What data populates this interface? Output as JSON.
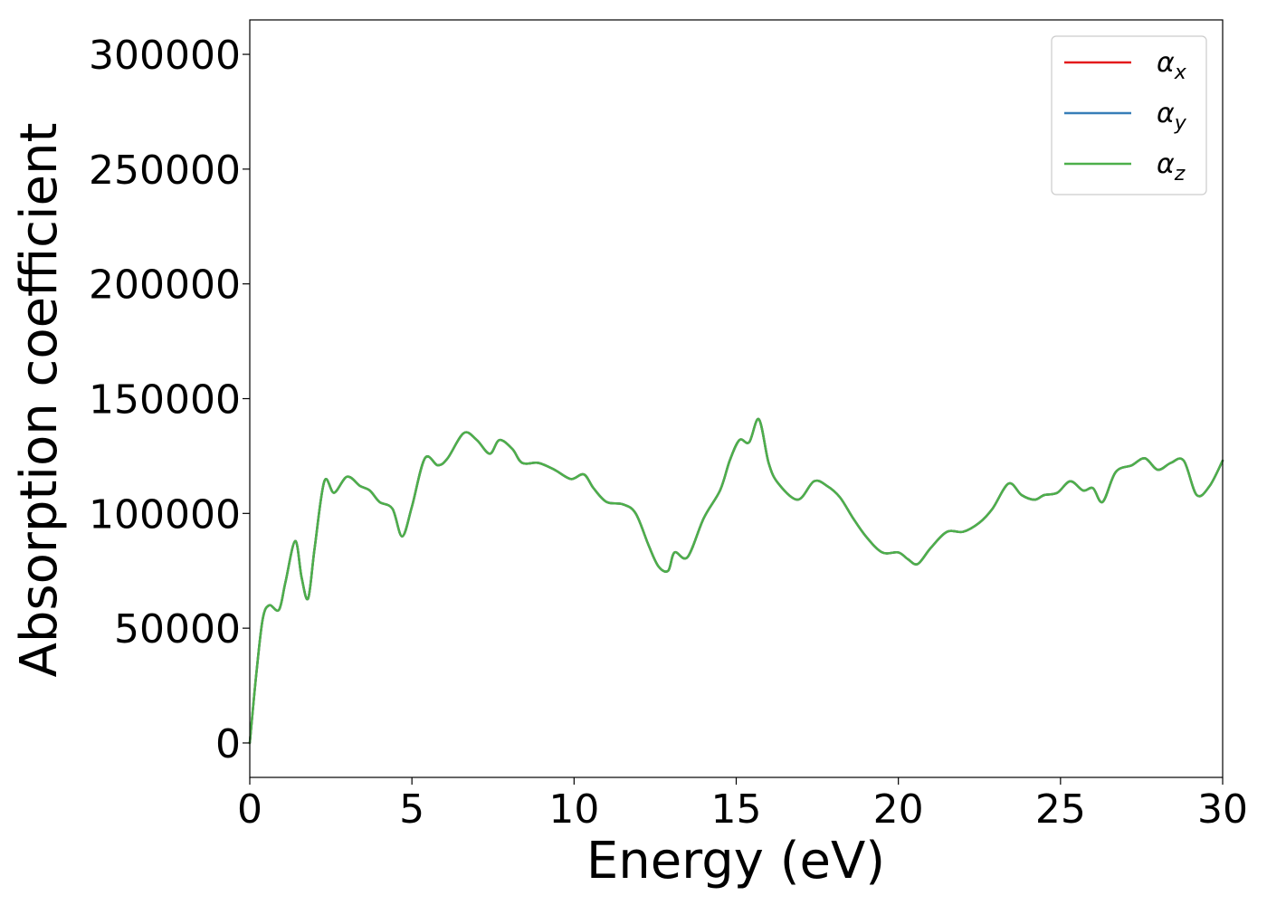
{
  "chart_data": {
    "type": "line",
    "title": "",
    "xlabel": "Energy (eV)",
    "ylabel": "Absorption coefficient",
    "xlim": [
      0,
      30
    ],
    "ylim": [
      -15000,
      315000
    ],
    "x_ticks": [
      "0",
      "5",
      "10",
      "15",
      "20",
      "25",
      "30"
    ],
    "y_ticks": [
      "0",
      "50000",
      "100000",
      "150000",
      "200000",
      "250000",
      "300000"
    ],
    "grid": false,
    "legend_position": "top-right",
    "series": [
      {
        "name": "α",
        "subscript": "x",
        "color": "#e41a1c"
      },
      {
        "name": "α",
        "subscript": "y",
        "color": "#377eb8"
      },
      {
        "name": "α",
        "subscript": "z",
        "color": "#4daf4a"
      }
    ],
    "x": [
      0,
      0.2,
      0.4,
      0.6,
      0.9,
      1.1,
      1.4,
      1.6,
      1.8,
      2.0,
      2.3,
      2.6,
      3.0,
      3.4,
      3.7,
      4.0,
      4.4,
      4.7,
      5.0,
      5.4,
      5.8,
      6.1,
      6.6,
      7.0,
      7.4,
      7.7,
      8.1,
      8.4,
      8.9,
      9.4,
      9.9,
      10.3,
      10.6,
      11.0,
      11.5,
      11.9,
      12.3,
      12.6,
      12.9,
      13.1,
      13.5,
      14.0,
      14.5,
      14.8,
      15.1,
      15.4,
      15.7,
      16.0,
      16.3,
      16.9,
      17.4,
      17.8,
      18.2,
      18.6,
      19.0,
      19.5,
      20.0,
      20.3,
      20.6,
      21.0,
      21.5,
      22.0,
      22.5,
      22.9,
      23.4,
      23.8,
      24.2,
      24.5,
      24.9,
      25.3,
      25.7,
      26.0,
      26.3,
      26.7,
      27.2,
      27.6,
      28.0,
      28.4,
      28.8,
      29.2,
      29.6,
      30.0
    ],
    "y": [
      0,
      30000,
      54000,
      60000,
      58000,
      70000,
      88000,
      72000,
      63000,
      85000,
      114000,
      109000,
      116000,
      112000,
      110000,
      105000,
      102000,
      90000,
      103000,
      124000,
      121000,
      124000,
      135000,
      132000,
      126000,
      132000,
      128000,
      122000,
      122000,
      119000,
      115000,
      117000,
      111000,
      105000,
      104000,
      100000,
      86000,
      77000,
      75000,
      83000,
      81000,
      98000,
      110000,
      123000,
      132000,
      131000,
      141000,
      122000,
      113000,
      106000,
      114000,
      112000,
      107000,
      98000,
      90000,
      83000,
      83000,
      80000,
      78000,
      85000,
      92000,
      92000,
      96000,
      102000,
      113000,
      108000,
      106000,
      108000,
      109000,
      114000,
      110000,
      111000,
      105000,
      118000,
      121000,
      124000,
      119000,
      122000,
      123000,
      108000,
      112000,
      123000
    ]
  }
}
